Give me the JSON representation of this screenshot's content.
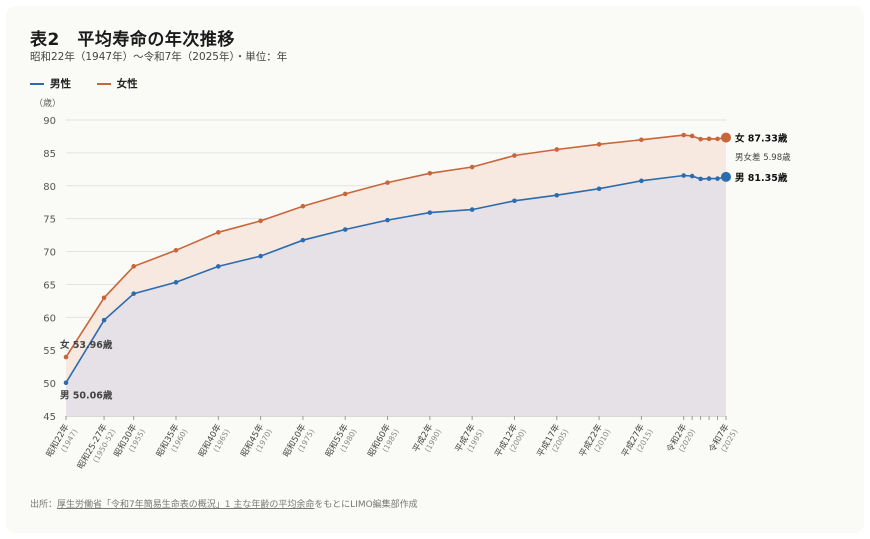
{
  "title": "表2　平均寿命の年次推移",
  "subtitle": "昭和22年（1947年）〜令和7年（2025年）・単位：年",
  "source": {
    "prefix": "出所：",
    "link": "厚生労働省「令和7年簡易生命表の概況」1 主な年齢の平均余命",
    "suffix": "をもとにLIMO編集部作成"
  },
  "colors": {
    "male": "#2b6cb0",
    "female": "#c8663a",
    "male_fill": "#e6e1e6",
    "female_fill": "#f8e9e0"
  },
  "chart_data": {
    "type": "line",
    "ylabel": "（歳）",
    "ylim": [
      45,
      90
    ],
    "yticks": [
      45,
      50,
      55,
      60,
      65,
      70,
      75,
      80,
      85,
      90
    ],
    "grid": true,
    "legend": "top-left",
    "xticks": [
      {
        "x": 1947,
        "label": "昭和22年",
        "sub": "(1947)"
      },
      {
        "x": 1951.5,
        "label": "昭和25-27年",
        "sub": "(1950-52)"
      },
      {
        "x": 1955,
        "label": "昭和30年",
        "sub": "(1955)"
      },
      {
        "x": 1960,
        "label": "昭和35年",
        "sub": "(1960)"
      },
      {
        "x": 1965,
        "label": "昭和40年",
        "sub": "(1965)"
      },
      {
        "x": 1970,
        "label": "昭和45年",
        "sub": "(1970)"
      },
      {
        "x": 1975,
        "label": "昭和50年",
        "sub": "(1975)"
      },
      {
        "x": 1980,
        "label": "昭和55年",
        "sub": "(1980)"
      },
      {
        "x": 1985,
        "label": "昭和60年",
        "sub": "(1985)"
      },
      {
        "x": 1990,
        "label": "平成2年",
        "sub": "(1990)"
      },
      {
        "x": 1995,
        "label": "平成7年",
        "sub": "(1995)"
      },
      {
        "x": 2000,
        "label": "平成12年",
        "sub": "(2000)"
      },
      {
        "x": 2005,
        "label": "平成17年",
        "sub": "(2005)"
      },
      {
        "x": 2010,
        "label": "平成22年",
        "sub": "(2010)"
      },
      {
        "x": 2015,
        "label": "平成27年",
        "sub": "(2015)"
      },
      {
        "x": 2020,
        "label": "令和2年",
        "sub": "(2020)"
      },
      {
        "x": 2025,
        "label": "令和7年",
        "sub": "(2025)"
      }
    ],
    "minor_ticks": [
      2021,
      2022,
      2023,
      2024
    ],
    "x": [
      1947,
      1951.5,
      1955,
      1960,
      1965,
      1970,
      1975,
      1980,
      1985,
      1990,
      1995,
      2000,
      2005,
      2010,
      2015,
      2020,
      2021,
      2022,
      2023,
      2024,
      2025
    ],
    "series": [
      {
        "name": "男性",
        "key": "male",
        "values": [
          50.06,
          59.57,
          63.6,
          65.32,
          67.74,
          69.31,
          71.73,
          73.35,
          74.78,
          75.92,
          76.38,
          77.72,
          78.56,
          79.55,
          80.75,
          81.56,
          81.47,
          81.05,
          81.09,
          81.09,
          81.35
        ]
      },
      {
        "name": "女性",
        "key": "female",
        "values": [
          53.96,
          62.97,
          67.75,
          70.19,
          72.92,
          74.66,
          76.89,
          78.76,
          80.48,
          81.9,
          82.85,
          84.6,
          85.52,
          86.3,
          86.99,
          87.71,
          87.57,
          87.09,
          87.14,
          87.13,
          87.33
        ]
      }
    ],
    "annotations": {
      "start_female": "女 53.96歳",
      "start_male": "男 50.06歳",
      "end_female": "女 87.33歳",
      "end_male": "男 81.35歳",
      "gap": "男女差 5.98歳"
    }
  }
}
